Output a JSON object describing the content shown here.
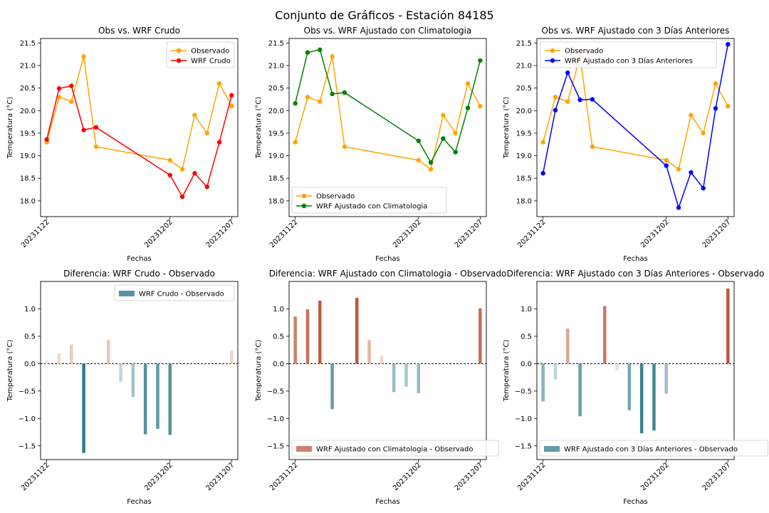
{
  "figure_title": "Conjunto de Gráficos - Estación 84185",
  "colors": {
    "observado": "#ffa500",
    "wrf_crudo": "#ff0000",
    "wrf_clim": "#008000",
    "wrf_3d": "#0000ff",
    "diff_neg": "#2f7a8a",
    "diff_pos": "#c0553a"
  },
  "chart_data": [
    {
      "type": "line",
      "title": "Obs vs. WRF Crudo",
      "xlabel": "Fechas",
      "ylabel": "Temperatura (°C)",
      "x": [
        "20231122",
        "20231123",
        "20231124",
        "20231125",
        "20231126",
        "20231127",
        "20231128",
        "20231129",
        "20231130",
        "20231201",
        "20231202",
        "20231203",
        "20231204",
        "20231205",
        "20231206",
        "20231207"
      ],
      "x_tick_labels": [
        "20231122",
        "20231202",
        "20231207"
      ],
      "y_ticks": [
        18.0,
        18.5,
        19.0,
        19.5,
        20.0,
        20.5,
        21.0,
        21.5
      ],
      "ylim": [
        17.65,
        21.6
      ],
      "legend": "upper right",
      "series": [
        {
          "name": "Observado",
          "color_key": "observado",
          "points": [
            [
              "20231122",
              19.3
            ],
            [
              "20231123",
              20.3
            ],
            [
              "20231124",
              20.2
            ],
            [
              "20231125",
              21.2
            ],
            [
              "20231126",
              19.2
            ],
            [
              "20231202",
              18.9
            ],
            [
              "20231203",
              18.7
            ],
            [
              "20231204",
              19.9
            ],
            [
              "20231205",
              19.5
            ],
            [
              "20231206",
              20.6
            ],
            [
              "20231207",
              20.1
            ]
          ]
        },
        {
          "name": "WRF Crudo",
          "color_key": "wrf_crudo",
          "points": [
            [
              "20231122",
              19.36
            ],
            [
              "20231123",
              20.49
            ],
            [
              "20231124",
              20.55
            ],
            [
              "20231125",
              19.57
            ],
            [
              "20231126",
              19.63
            ],
            [
              "20231202",
              18.57
            ],
            [
              "20231203",
              18.09
            ],
            [
              "20231204",
              18.61
            ],
            [
              "20231205",
              18.31
            ],
            [
              "20231206",
              19.3
            ],
            [
              "20231207",
              20.34
            ]
          ]
        }
      ]
    },
    {
      "type": "line",
      "title": "Obs vs. WRF Ajustado con Climatologia",
      "xlabel": "Fechas",
      "ylabel": "Temperatura (°C)",
      "x": [
        "20231122",
        "20231123",
        "20231124",
        "20231125",
        "20231126",
        "20231127",
        "20231128",
        "20231129",
        "20231130",
        "20231201",
        "20231202",
        "20231203",
        "20231204",
        "20231205",
        "20231206",
        "20231207"
      ],
      "x_tick_labels": [
        "20231122",
        "20231202",
        "20231207"
      ],
      "y_ticks": [
        18.0,
        18.5,
        19.0,
        19.5,
        20.0,
        20.5,
        21.0,
        21.5
      ],
      "ylim": [
        17.65,
        21.6
      ],
      "legend": "lower left",
      "series": [
        {
          "name": "Observado",
          "color_key": "observado",
          "points": [
            [
              "20231122",
              19.3
            ],
            [
              "20231123",
              20.3
            ],
            [
              "20231124",
              20.2
            ],
            [
              "20231125",
              21.2
            ],
            [
              "20231126",
              19.2
            ],
            [
              "20231202",
              18.9
            ],
            [
              "20231203",
              18.7
            ],
            [
              "20231204",
              19.9
            ],
            [
              "20231205",
              19.5
            ],
            [
              "20231206",
              20.6
            ],
            [
              "20231207",
              20.1
            ]
          ]
        },
        {
          "name": "WRF Ajustado con Climatologia",
          "color_key": "wrf_clim",
          "points": [
            [
              "20231122",
              20.16
            ],
            [
              "20231123",
              21.29
            ],
            [
              "20231124",
              21.35
            ],
            [
              "20231125",
              20.37
            ],
            [
              "20231126",
              20.4
            ],
            [
              "20231202",
              19.33
            ],
            [
              "20231203",
              18.85
            ],
            [
              "20231204",
              19.38
            ],
            [
              "20231205",
              19.08
            ],
            [
              "20231206",
              20.06
            ],
            [
              "20231207",
              21.11
            ]
          ]
        }
      ]
    },
    {
      "type": "line",
      "title": "Obs vs. WRF Ajustado con 3 Días Anteriores",
      "xlabel": "Fechas",
      "ylabel": "Temperatura (°C)",
      "x": [
        "20231122",
        "20231123",
        "20231124",
        "20231125",
        "20231126",
        "20231127",
        "20231128",
        "20231129",
        "20231130",
        "20231201",
        "20231202",
        "20231203",
        "20231204",
        "20231205",
        "20231206",
        "20231207"
      ],
      "x_tick_labels": [
        "20231122",
        "20231202",
        "20231207"
      ],
      "y_ticks": [
        18.0,
        18.5,
        19.0,
        19.5,
        20.0,
        20.5,
        21.0,
        21.5
      ],
      "ylim": [
        17.65,
        21.6
      ],
      "legend": "upper left",
      "series": [
        {
          "name": "Observado",
          "color_key": "observado",
          "points": [
            [
              "20231122",
              19.3
            ],
            [
              "20231123",
              20.3
            ],
            [
              "20231124",
              20.2
            ],
            [
              "20231125",
              21.2
            ],
            [
              "20231126",
              19.2
            ],
            [
              "20231202",
              18.9
            ],
            [
              "20231203",
              18.7
            ],
            [
              "20231204",
              19.9
            ],
            [
              "20231205",
              19.5
            ],
            [
              "20231206",
              20.6
            ],
            [
              "20231207",
              20.1
            ]
          ]
        },
        {
          "name": "WRF Ajustado con 3 Días Anteriores",
          "color_key": "wrf_3d",
          "points": [
            [
              "20231122",
              18.61
            ],
            [
              "20231123",
              20.01
            ],
            [
              "20231124",
              20.84
            ],
            [
              "20231125",
              20.24
            ],
            [
              "20231126",
              20.25
            ],
            [
              "20231202",
              18.78
            ],
            [
              "20231203",
              17.85
            ],
            [
              "20231204",
              18.63
            ],
            [
              "20231205",
              18.28
            ],
            [
              "20231206",
              20.05
            ],
            [
              "20231207",
              21.47
            ]
          ]
        }
      ]
    },
    {
      "type": "bar",
      "title": "Diferencia: WRF Crudo - Observado",
      "xlabel": "Fechas",
      "ylabel": "Temperatura (°C)",
      "x": [
        "20231122",
        "20231123",
        "20231124",
        "20231125",
        "20231126",
        "20231127",
        "20231128",
        "20231129",
        "20231130",
        "20231201",
        "20231202",
        "20231203",
        "20231204",
        "20231205",
        "20231206",
        "20231207"
      ],
      "x_tick_labels": [
        "20231122",
        "20231202",
        "20231207"
      ],
      "y_ticks": [
        -1.5,
        -1.0,
        -0.5,
        0.0,
        0.5,
        1.0
      ],
      "ylim": [
        -1.75,
        1.5
      ],
      "legend": "upper right",
      "series": [
        {
          "name": "WRF Crudo - Observado",
          "points": [
            [
              "20231122",
              0.06
            ],
            [
              "20231123",
              0.19
            ],
            [
              "20231124",
              0.35
            ],
            [
              "20231125",
              -1.63
            ],
            [
              "20231127",
              0.43
            ],
            [
              "20231128",
              -0.33
            ],
            [
              "20231129",
              -0.61
            ],
            [
              "20231130",
              -1.29
            ],
            [
              "20231201",
              -1.19
            ],
            [
              "20231202",
              -1.3
            ],
            [
              "20231207",
              0.24
            ]
          ]
        }
      ]
    },
    {
      "type": "bar",
      "title": "Diferencia: WRF Ajustado con Climatologia - Observado",
      "xlabel": "Fechas",
      "ylabel": "Temperatura (°C)",
      "x": [
        "20231122",
        "20231123",
        "20231124",
        "20231125",
        "20231126",
        "20231127",
        "20231128",
        "20231129",
        "20231130",
        "20231201",
        "20231202",
        "20231203",
        "20231204",
        "20231205",
        "20231206",
        "20231207"
      ],
      "x_tick_labels": [
        "20231122",
        "20231202",
        "20231207"
      ],
      "y_ticks": [
        -1.5,
        -1.0,
        -0.5,
        0.0,
        0.5,
        1.0
      ],
      "ylim": [
        -1.75,
        1.5
      ],
      "legend": "lower left",
      "series": [
        {
          "name": "WRF Ajustado con Climatologia - Observado",
          "points": [
            [
              "20231122",
              0.86
            ],
            [
              "20231123",
              0.99
            ],
            [
              "20231124",
              1.15
            ],
            [
              "20231125",
              -0.83
            ],
            [
              "20231127",
              1.2
            ],
            [
              "20231128",
              0.43
            ],
            [
              "20231129",
              0.15
            ],
            [
              "20231130",
              -0.52
            ],
            [
              "20231201",
              -0.42
            ],
            [
              "20231202",
              -0.54
            ],
            [
              "20231207",
              1.01
            ]
          ]
        }
      ]
    },
    {
      "type": "bar",
      "title": "Diferencia: WRF Ajustado con 3 Días Anteriores - Observado",
      "xlabel": "Fechas",
      "ylabel": "Temperatura (°C)",
      "x": [
        "20231122",
        "20231123",
        "20231124",
        "20231125",
        "20231126",
        "20231127",
        "20231128",
        "20231129",
        "20231130",
        "20231201",
        "20231202",
        "20231203",
        "20231204",
        "20231205",
        "20231206",
        "20231207"
      ],
      "x_tick_labels": [
        "20231122",
        "20231202",
        "20231207"
      ],
      "y_ticks": [
        -1.5,
        -1.0,
        -0.5,
        0.0,
        0.5,
        1.0
      ],
      "ylim": [
        -1.75,
        1.5
      ],
      "legend": "lower left",
      "series": [
        {
          "name": "WRF Ajustado con 3 Días Anteriores - Observado",
          "points": [
            [
              "20231122",
              -0.69
            ],
            [
              "20231123",
              -0.29
            ],
            [
              "20231124",
              0.64
            ],
            [
              "20231125",
              -0.96
            ],
            [
              "20231127",
              1.05
            ],
            [
              "20231128",
              -0.12
            ],
            [
              "20231129",
              -0.85
            ],
            [
              "20231130",
              -1.27
            ],
            [
              "20231201",
              -1.22
            ],
            [
              "20231202",
              -0.55
            ],
            [
              "20231207",
              1.37
            ]
          ]
        }
      ]
    }
  ]
}
